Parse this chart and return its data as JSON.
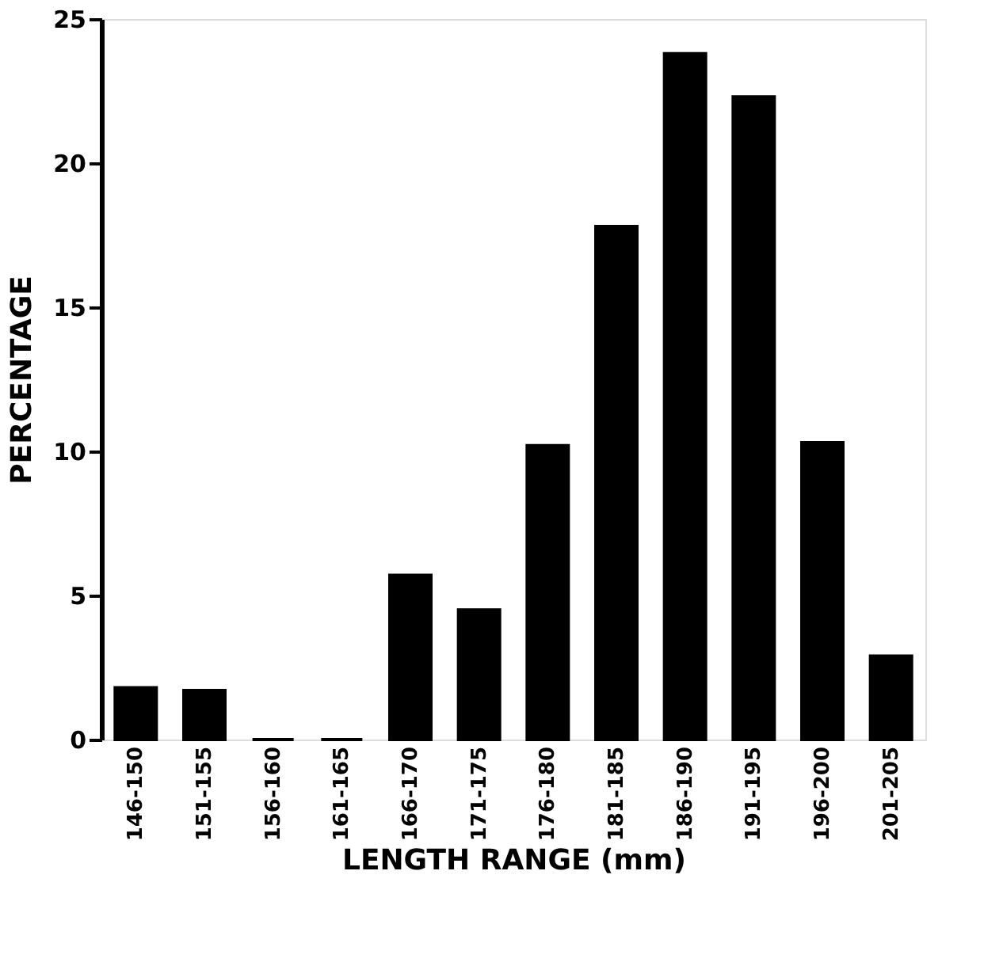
{
  "chart_data": {
    "type": "bar",
    "xlabel": "LENGTH RANGE (mm)",
    "ylabel": "PERCENTAGE",
    "categories": [
      "146-150",
      "151-155",
      "156-160",
      "161-165",
      "166-170",
      "171-175",
      "176-180",
      "181-185",
      "186-190",
      "191-195",
      "196-200",
      "201-205"
    ],
    "values": [
      1.8,
      1.7,
      0,
      0,
      5.7,
      4.5,
      10.2,
      17.8,
      23.8,
      22.3,
      10.3,
      2.9
    ],
    "color": "#000000",
    "ylim": [
      0,
      25
    ],
    "yticks": [
      0,
      5,
      10,
      15,
      20,
      25
    ],
    "grid": false
  }
}
